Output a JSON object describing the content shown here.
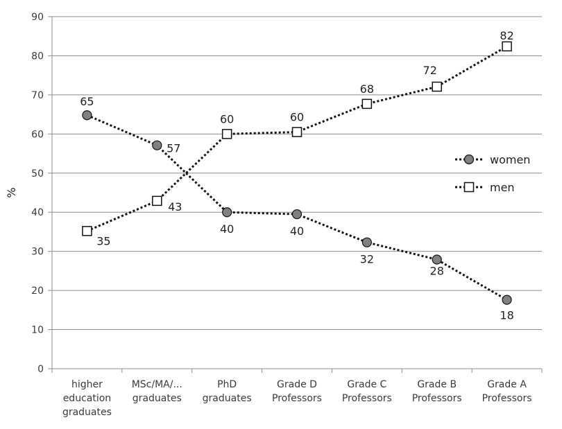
{
  "chart_data": {
    "type": "line",
    "title": "",
    "xlabel": "",
    "ylabel": "%",
    "ylim": [
      0,
      90
    ],
    "yticks": [
      0,
      10,
      20,
      30,
      40,
      50,
      60,
      70,
      80,
      90
    ],
    "grid": true,
    "legend_position": "right",
    "categories": [
      [
        "higher",
        "education",
        "graduates"
      ],
      [
        "MSc/MA/...",
        "graduates"
      ],
      [
        "PhD",
        "graduates"
      ],
      [
        "Grade D",
        "Professors"
      ],
      [
        "Grade C",
        "Professors"
      ],
      [
        "Grade B",
        "Professors"
      ],
      [
        "Grade A",
        "Professors"
      ]
    ],
    "series": [
      {
        "name": "women",
        "marker": "circle",
        "color": "#808080",
        "values": [
          64.8,
          57.1,
          40.0,
          39.5,
          32.3,
          27.9,
          17.6
        ],
        "labels": [
          "65",
          "57",
          "40",
          "40",
          "32",
          "28",
          "18"
        ]
      },
      {
        "name": "men",
        "marker": "square",
        "color": "#ffffff",
        "values": [
          35.2,
          42.9,
          60.0,
          60.5,
          67.7,
          72.1,
          82.4
        ],
        "labels": [
          "35",
          "43",
          "60",
          "60",
          "68",
          "72",
          "82"
        ]
      }
    ]
  }
}
